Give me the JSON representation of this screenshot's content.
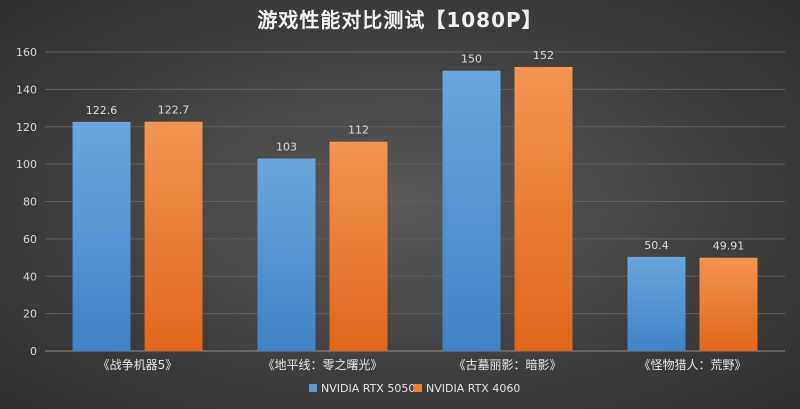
{
  "chart_data": {
    "type": "bar",
    "title": "游戏性能对比测试【1080P】",
    "categories": [
      "《战争机器5》",
      "《地平线：零之曙光》",
      "《古墓丽影：暗影》",
      "《怪物猎人：荒野》"
    ],
    "series": [
      {
        "name": "NVIDIA RTX 5050",
        "values": [
          122.6,
          103,
          150,
          50.4
        ],
        "data_labels": [
          "122.6",
          "103",
          "150",
          "50.4"
        ],
        "color": "#5b9bd5"
      },
      {
        "name": "NVIDIA RTX 4060",
        "values": [
          122.7,
          112,
          152,
          49.91
        ],
        "data_labels": [
          "122.7",
          "112",
          "152",
          "49.91"
        ],
        "color": "#ed7d31"
      }
    ],
    "ylim": [
      0,
      160
    ],
    "yticks": [
      0,
      20,
      40,
      60,
      80,
      100,
      120,
      140,
      160
    ],
    "grid": true,
    "legend_position": "bottom"
  }
}
